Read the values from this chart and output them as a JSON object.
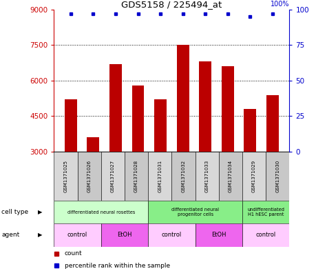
{
  "title": "GDS5158 / 225494_at",
  "samples": [
    "GSM1371025",
    "GSM1371026",
    "GSM1371027",
    "GSM1371028",
    "GSM1371031",
    "GSM1371032",
    "GSM1371033",
    "GSM1371034",
    "GSM1371029",
    "GSM1371030"
  ],
  "counts": [
    5200,
    3600,
    6700,
    5800,
    5200,
    7500,
    6800,
    6600,
    4800,
    5400
  ],
  "percentiles": [
    97,
    97,
    97,
    97,
    97,
    97,
    97,
    97,
    95,
    97
  ],
  "ylim_left": [
    3000,
    9000
  ],
  "ylim_right": [
    0,
    100
  ],
  "yticks_left": [
    3000,
    4500,
    6000,
    7500,
    9000
  ],
  "yticks_right": [
    0,
    25,
    50,
    75,
    100
  ],
  "bar_color": "#bb0000",
  "dot_color": "#0000cc",
  "bar_bottom": 3000,
  "cell_type_groups": [
    {
      "label": "differentiated neural rosettes",
      "start": 0,
      "end": 4,
      "color": "#ccffcc"
    },
    {
      "label": "differentiated neural\nprogenitor cells",
      "start": 4,
      "end": 8,
      "color": "#88ee88"
    },
    {
      "label": "undifferentiated\nH1 hESC parent",
      "start": 8,
      "end": 10,
      "color": "#88ee88"
    }
  ],
  "agent_groups": [
    {
      "label": "control",
      "start": 0,
      "end": 2,
      "color": "#ffccff"
    },
    {
      "label": "EtOH",
      "start": 2,
      "end": 4,
      "color": "#ee66ee"
    },
    {
      "label": "control",
      "start": 4,
      "end": 6,
      "color": "#ffccff"
    },
    {
      "label": "EtOH",
      "start": 6,
      "end": 8,
      "color": "#ee66ee"
    },
    {
      "label": "control",
      "start": 8,
      "end": 10,
      "color": "#ffccff"
    }
  ],
  "cell_type_label": "cell type",
  "agent_label": "agent",
  "legend_count_label": "count",
  "legend_percentile_label": "percentile rank within the sample",
  "axis_left_color": "#cc0000",
  "axis_right_color": "#0000cc",
  "box_colors": [
    "#d8d8d8",
    "#c8c8c8"
  ]
}
